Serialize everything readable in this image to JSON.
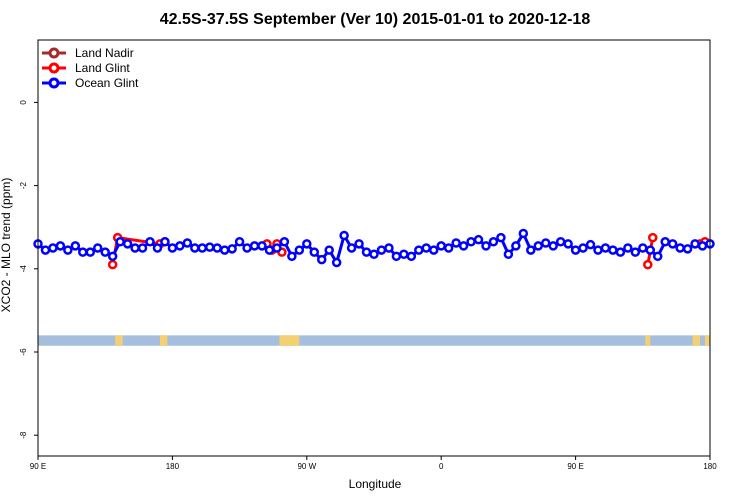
{
  "chart_data": {
    "type": "line",
    "title": "42.5S-37.5S September (Ver 10)   2015-01-01 to 2020-12-18",
    "xlabel": "Longitude",
    "ylabel": "XCO2 - MLO trend (ppm)",
    "xlim": [
      -90,
      180
    ],
    "ylim": [
      -8.5,
      1.5
    ],
    "x_ticks": [
      {
        "value": -90,
        "label": "90 E"
      },
      {
        "value": -36,
        "label": "180"
      },
      {
        "value": 18,
        "label": "90 W"
      },
      {
        "value": 72,
        "label": "0"
      },
      {
        "value": 126,
        "label": "90 E"
      },
      {
        "value": 180,
        "label": "180"
      }
    ],
    "y_ticks": [
      {
        "value": 0,
        "label": "0"
      },
      {
        "value": -2,
        "label": "-2"
      },
      {
        "value": -4,
        "label": "-4"
      },
      {
        "value": -6,
        "label": "-6"
      },
      {
        "value": -8,
        "label": "-8"
      }
    ],
    "legend_position": "top-left",
    "series": [
      {
        "name": "Land Nadir",
        "color": "#a52a2a",
        "x": [],
        "y": []
      },
      {
        "name": "Land Glint",
        "color": "#ff0000",
        "segments": [
          {
            "x": [
              -60,
              -58,
              -41,
              -39
            ],
            "y": [
              -3.9,
              -3.25,
              -3.4,
              -3.35
            ]
          },
          {
            "x": [
              2,
              4,
              6,
              8
            ],
            "y": [
              -3.4,
              -3.55,
              -3.4,
              -3.6
            ]
          },
          {
            "x": [
              155,
              157
            ],
            "y": [
              -3.9,
              -3.25
            ]
          },
          {
            "x": [
              176,
              178
            ],
            "y": [
              -3.4,
              -3.35
            ]
          }
        ]
      },
      {
        "name": "Ocean Glint",
        "color": "#0000ff",
        "x": [
          -90,
          -87,
          -84,
          -81,
          -78,
          -75,
          -72,
          -69,
          -66,
          -63,
          -60,
          -57,
          -54,
          -51,
          -48,
          -45,
          -42,
          -39,
          -36,
          -33,
          -30,
          -27,
          -24,
          -21,
          -18,
          -15,
          -12,
          -9,
          -6,
          -3,
          0,
          3,
          6,
          9,
          12,
          15,
          18,
          21,
          24,
          27,
          30,
          33,
          36,
          39,
          42,
          45,
          48,
          51,
          54,
          57,
          60,
          63,
          66,
          69,
          72,
          75,
          78,
          81,
          84,
          87,
          90,
          93,
          96,
          99,
          102,
          105,
          108,
          111,
          114,
          117,
          120,
          123,
          126,
          129,
          132,
          135,
          138,
          141,
          144,
          147,
          150,
          153,
          156,
          159,
          162,
          165,
          168,
          171,
          174,
          177,
          180
        ],
        "y": [
          -3.4,
          -3.55,
          -3.5,
          -3.45,
          -3.55,
          -3.45,
          -3.6,
          -3.6,
          -3.5,
          -3.6,
          -3.7,
          -3.35,
          -3.4,
          -3.5,
          -3.5,
          -3.35,
          -3.5,
          -3.35,
          -3.5,
          -3.45,
          -3.38,
          -3.5,
          -3.5,
          -3.48,
          -3.5,
          -3.55,
          -3.52,
          -3.35,
          -3.5,
          -3.45,
          -3.45,
          -3.55,
          -3.5,
          -3.35,
          -3.7,
          -3.55,
          -3.4,
          -3.6,
          -3.78,
          -3.55,
          -3.85,
          -3.2,
          -3.5,
          -3.4,
          -3.6,
          -3.65,
          -3.55,
          -3.5,
          -3.7,
          -3.65,
          -3.7,
          -3.55,
          -3.5,
          -3.55,
          -3.45,
          -3.5,
          -3.38,
          -3.45,
          -3.35,
          -3.3,
          -3.45,
          -3.35,
          -3.25,
          -3.65,
          -3.45,
          -3.15,
          -3.55,
          -3.45,
          -3.38,
          -3.45,
          -3.35,
          -3.4,
          -3.55,
          -3.5,
          -3.42,
          -3.55,
          -3.5,
          -3.55,
          -3.6,
          -3.5,
          -3.6,
          -3.5,
          -3.55,
          -3.7,
          -3.35,
          -3.4,
          -3.5,
          -3.52,
          -3.4,
          -3.45,
          -3.4
        ]
      }
    ],
    "coverage_band": {
      "y_range": [
        -5.85,
        -5.6
      ],
      "band_color": "#a5bedd",
      "land_color": "#f3d071",
      "land_ranges": [
        [
          -59,
          -56
        ],
        [
          -41,
          -38
        ],
        [
          7,
          15
        ],
        [
          154,
          156
        ],
        [
          173,
          176
        ],
        [
          178,
          180
        ]
      ]
    }
  }
}
